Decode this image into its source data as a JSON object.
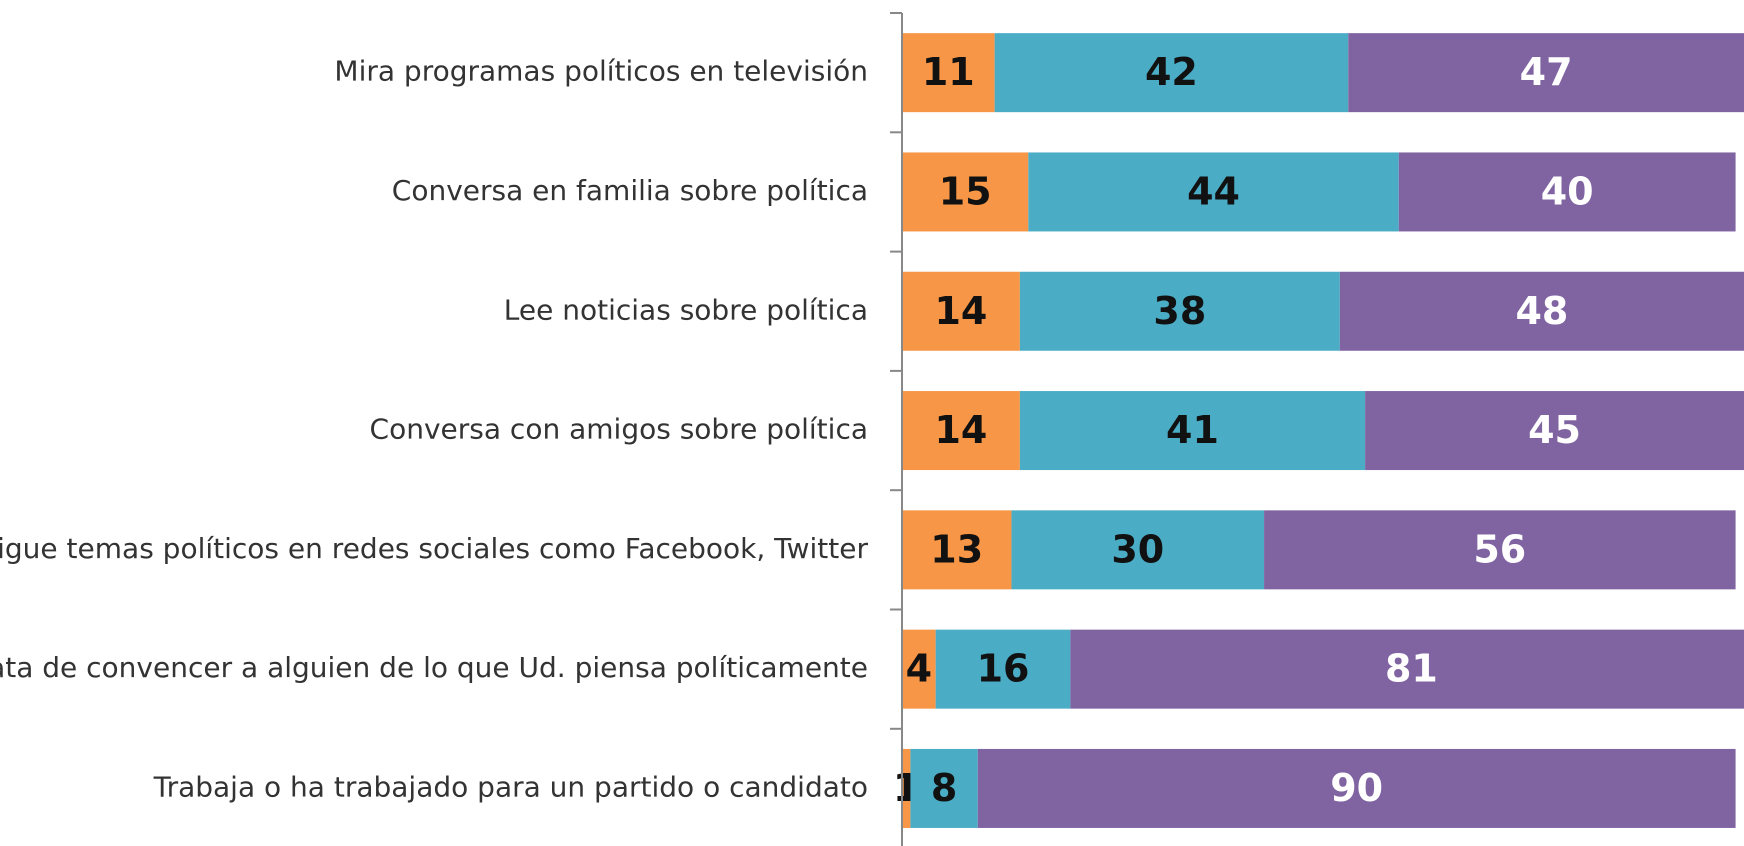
{
  "chart_data": {
    "type": "stacked_bar_horizontal",
    "categories": [
      "Mira programas políticos en televisión",
      "Conversa en familia sobre política",
      "Lee noticias sobre política",
      "Conversa con amigos sobre política",
      "Sigue temas políticos en redes sociales como Facebook, Twitter",
      "Trata de convencer a alguien de lo que Ud. piensa políticamente",
      "Trabaja o ha trabajado para un partido o candidato"
    ],
    "series": [
      {
        "color": "#f79646",
        "label_color": "#111111",
        "values": [
          11,
          15,
          14,
          14,
          13,
          4,
          1
        ]
      },
      {
        "color": "#4bacc6",
        "label_color": "#111111",
        "values": [
          42,
          44,
          38,
          41,
          30,
          16,
          8
        ]
      },
      {
        "color": "#8064a2",
        "label_color": "#ffffff",
        "values": [
          47,
          40,
          48,
          45,
          56,
          81,
          90
        ]
      }
    ],
    "xlim": [
      0,
      100
    ]
  }
}
